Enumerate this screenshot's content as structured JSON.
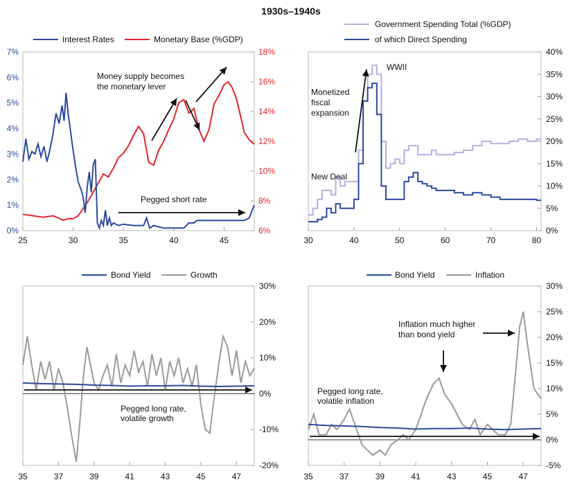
{
  "title": "1930s–1940s",
  "colors": {
    "blue": "#2b4a9c",
    "red": "#e0262b",
    "lightpurple": "#b6ade0",
    "gray": "#9a9a9a",
    "black": "#111111"
  },
  "chart_data": [
    {
      "type": "line",
      "legend": [
        "Interest Rates",
        "Monetary Base (%GDP)"
      ],
      "x_ticks": [
        "25",
        "30",
        "35",
        "40",
        "45"
      ],
      "xlim": [
        1925,
        1948
      ],
      "left_axis": {
        "ticks": [
          "0%",
          "1%",
          "2%",
          "3%",
          "4%",
          "5%",
          "6%",
          "7%"
        ],
        "ylim": [
          0,
          7
        ]
      },
      "right_axis": {
        "ticks": [
          "6%",
          "8%",
          "10%",
          "12%",
          "14%",
          "16%",
          "18%"
        ],
        "ylim": [
          6,
          18
        ]
      },
      "annotations": [
        "Money supply becomes",
        "the monetary lever",
        "Pegged short rate"
      ],
      "series": [
        {
          "name": "Interest Rates",
          "axis": "left",
          "color": "#2b4a9c",
          "x": [
            1925,
            1925.3,
            1925.6,
            1925.9,
            1926.2,
            1926.5,
            1926.8,
            1927.1,
            1927.4,
            1927.7,
            1928,
            1928.3,
            1928.6,
            1928.9,
            1929.1,
            1929.3,
            1929.5,
            1929.7,
            1929.9,
            1930.2,
            1930.5,
            1930.8,
            1931.0,
            1931.2,
            1931.4,
            1931.6,
            1931.8,
            1932.0,
            1932.2,
            1932.4,
            1932.6,
            1932.8,
            1933.0,
            1933.2,
            1933.4,
            1933.6,
            1933.8,
            1934.0,
            1934.5,
            1935,
            1936,
            1937,
            1937.3,
            1937.6,
            1938,
            1939,
            1940,
            1941,
            1941.5,
            1942,
            1942.3,
            1942.6,
            1943,
            1944,
            1945,
            1946,
            1947,
            1947.5,
            1947.8,
            1948
          ],
          "y": [
            2.7,
            3.6,
            2.8,
            3.1,
            3.0,
            3.4,
            2.9,
            3.3,
            2.7,
            3.2,
            3.8,
            4.6,
            4.2,
            4.9,
            4.3,
            5.4,
            4.6,
            4.0,
            3.4,
            2.6,
            1.9,
            1.6,
            1.3,
            0.7,
            1.7,
            2.3,
            1.5,
            2.6,
            2.8,
            0.3,
            0.1,
            0.4,
            0.2,
            0.8,
            0.2,
            0.5,
            0.2,
            0.3,
            0.2,
            0.25,
            0.2,
            0.2,
            0.5,
            0.1,
            0.2,
            0.1,
            0.1,
            0.1,
            0.3,
            0.3,
            0.4,
            0.4,
            0.4,
            0.4,
            0.4,
            0.4,
            0.4,
            0.5,
            0.8,
            1.0
          ]
        },
        {
          "name": "Monetary Base (%GDP)",
          "axis": "right",
          "color": "#e0262b",
          "x": [
            1925,
            1926,
            1927,
            1928,
            1929,
            1929.5,
            1930,
            1930.5,
            1931,
            1931.5,
            1932,
            1932.5,
            1933,
            1933.5,
            1934,
            1934.5,
            1935,
            1935.5,
            1936,
            1936.5,
            1937,
            1937.5,
            1938,
            1938.5,
            1939,
            1939.5,
            1940,
            1940.5,
            1941,
            1941.5,
            1942,
            1942.5,
            1943,
            1943.5,
            1944,
            1944.5,
            1945,
            1945.4,
            1945.8,
            1946.2,
            1946.6,
            1947,
            1947.5,
            1948
          ],
          "y": [
            7.1,
            7.0,
            6.9,
            7.0,
            6.7,
            6.8,
            6.8,
            7.0,
            7.5,
            8.0,
            8.6,
            9.2,
            9.8,
            9.6,
            10.2,
            10.9,
            11.2,
            11.7,
            12.4,
            13.0,
            12.5,
            10.6,
            10.4,
            11.4,
            12.0,
            12.8,
            13.5,
            14.6,
            14.8,
            13.9,
            14.2,
            12.8,
            12.0,
            12.8,
            14.5,
            15.1,
            15.8,
            16.0,
            15.6,
            14.9,
            13.8,
            12.6,
            12.1,
            11.8
          ]
        }
      ]
    },
    {
      "type": "line",
      "legend": [
        "Government Spending Total (%GDP)",
        "of which Direct Spending"
      ],
      "x_ticks": [
        "30",
        "40",
        "50",
        "60",
        "70",
        "80"
      ],
      "xlim": [
        1930,
        1981
      ],
      "right_axis": {
        "ticks": [
          "0%",
          "5%",
          "10%",
          "15%",
          "20%",
          "25%",
          "30%",
          "35%",
          "40%"
        ],
        "ylim": [
          0,
          40
        ]
      },
      "annotations": [
        "WWII",
        "Monetized",
        "fiscal",
        "expansion",
        "New Deal"
      ],
      "series": [
        {
          "name": "Government Spending Total (%GDP)",
          "color": "#b6ade0",
          "x": [
            1930,
            1931,
            1932,
            1933,
            1934,
            1935,
            1936,
            1937,
            1938,
            1939,
            1940,
            1941,
            1942,
            1943,
            1944,
            1945,
            1946,
            1947,
            1948,
            1949,
            1950,
            1951,
            1952,
            1953,
            1954,
            1955,
            1956,
            1957,
            1958,
            1959,
            1960,
            1962,
            1964,
            1966,
            1968,
            1970,
            1972,
            1974,
            1976,
            1978,
            1980,
            1981
          ],
          "y": [
            3.5,
            5,
            7,
            9,
            9,
            8,
            12,
            10,
            11,
            11,
            11,
            18,
            29,
            35,
            37,
            35,
            20,
            14,
            15,
            16,
            15,
            18,
            19,
            19,
            17,
            17,
            17,
            18,
            17,
            17,
            17,
            17.5,
            18,
            19,
            20,
            19.5,
            19.5,
            20,
            20.5,
            20,
            20.5,
            20.5
          ]
        },
        {
          "name": "of which Direct Spending",
          "color": "#2b4a9c",
          "x": [
            1930,
            1931,
            1932,
            1933,
            1934,
            1935,
            1936,
            1937,
            1938,
            1939,
            1940,
            1941,
            1942,
            1943,
            1944,
            1945,
            1946,
            1947,
            1948,
            1949,
            1950,
            1951,
            1952,
            1953,
            1954,
            1955,
            1956,
            1957,
            1958,
            1959,
            1960,
            1962,
            1964,
            1966,
            1968,
            1970,
            1972,
            1974,
            1976,
            1978,
            1980,
            1981
          ],
          "y": [
            2,
            2,
            2.5,
            3,
            5,
            4,
            6,
            5,
            5,
            5,
            7,
            15,
            29,
            32,
            33,
            26,
            10,
            7,
            7,
            7,
            7,
            11,
            12,
            13,
            11,
            10.5,
            10,
            9.5,
            9,
            9,
            9,
            8.5,
            8,
            8.5,
            8,
            7.5,
            7,
            7,
            7,
            7,
            6.8,
            6.8
          ]
        }
      ]
    },
    {
      "type": "line",
      "legend": [
        "Bond Yield",
        "Growth"
      ],
      "x_ticks": [
        "35",
        "37",
        "39",
        "41",
        "43",
        "45",
        "47"
      ],
      "xlim": [
        1935,
        1948
      ],
      "right_axis": {
        "ticks": [
          "-20%",
          "-10%",
          "0%",
          "10%",
          "20%",
          "30%"
        ],
        "ylim": [
          -20,
          30
        ]
      },
      "annotations": [
        "Pegged long rate,",
        "volatile growth"
      ],
      "series": [
        {
          "name": "Bond Yield",
          "color": "#2b4a9c",
          "x": [
            1935,
            1936,
            1937,
            1938,
            1939,
            1940,
            1941,
            1942,
            1943,
            1944,
            1945,
            1946,
            1947,
            1948
          ],
          "y": [
            3.0,
            2.8,
            2.7,
            2.6,
            2.4,
            2.3,
            2.1,
            2.2,
            2.2,
            2.3,
            2.1,
            2.0,
            2.1,
            2.2
          ]
        },
        {
          "name": "Growth",
          "color": "#9a9a9a",
          "x": [
            1935,
            1935.25,
            1935.5,
            1935.75,
            1936,
            1936.25,
            1936.5,
            1936.75,
            1937,
            1937.25,
            1937.5,
            1937.75,
            1938,
            1938.2,
            1938.4,
            1938.6,
            1938.8,
            1939,
            1939.25,
            1939.5,
            1939.75,
            1940,
            1940.25,
            1940.5,
            1940.75,
            1941,
            1941.25,
            1941.5,
            1941.75,
            1942,
            1942.25,
            1942.5,
            1942.75,
            1943,
            1943.25,
            1943.5,
            1943.75,
            1944,
            1944.25,
            1944.5,
            1944.75,
            1945,
            1945.25,
            1945.5,
            1945.75,
            1946,
            1946.25,
            1946.5,
            1946.75,
            1947,
            1947.25,
            1947.5,
            1947.75,
            1948
          ],
          "y": [
            8,
            16,
            8,
            1,
            9,
            4,
            9,
            1,
            7,
            3,
            -4,
            -12,
            -19,
            -8,
            5,
            13,
            8,
            3,
            1,
            5,
            8,
            2,
            11,
            3,
            8,
            5,
            12,
            6,
            9,
            2,
            11,
            5,
            10,
            1,
            9,
            5,
            10,
            3,
            7,
            2,
            8,
            -3,
            -10,
            -11,
            -1,
            8,
            16,
            13,
            5,
            12,
            3,
            9,
            5,
            7
          ]
        }
      ]
    },
    {
      "type": "line",
      "legend": [
        "Bond Yield",
        "Inflation"
      ],
      "x_ticks": [
        "35",
        "37",
        "39",
        "41",
        "43",
        "45",
        "47"
      ],
      "xlim": [
        1935,
        1948
      ],
      "right_axis": {
        "ticks": [
          "-5%",
          "0%",
          "5%",
          "10%",
          "15%",
          "20%",
          "25%",
          "30%"
        ],
        "ylim": [
          -5,
          30
        ]
      },
      "annotations": [
        "Inflation much higher",
        "than bond yield",
        "Pegged long rate,",
        "volatile inflation"
      ],
      "series": [
        {
          "name": "Bond Yield",
          "color": "#2b4a9c",
          "x": [
            1935,
            1936,
            1937,
            1938,
            1939,
            1940,
            1941,
            1942,
            1943,
            1944,
            1945,
            1946,
            1947,
            1948
          ],
          "y": [
            3.0,
            2.8,
            2.7,
            2.6,
            2.4,
            2.3,
            2.1,
            2.2,
            2.2,
            2.3,
            2.1,
            2.0,
            2.1,
            2.2
          ]
        },
        {
          "name": "Inflation",
          "color": "#9a9a9a",
          "x": [
            1935,
            1935.3,
            1935.6,
            1936,
            1936.3,
            1936.6,
            1937,
            1937.3,
            1937.6,
            1938,
            1938.3,
            1938.6,
            1939,
            1939.3,
            1939.6,
            1940,
            1940.3,
            1940.6,
            1941,
            1941.3,
            1941.6,
            1942,
            1942.3,
            1942.6,
            1943,
            1943.3,
            1943.6,
            1944,
            1944.3,
            1944.6,
            1945,
            1945.3,
            1945.6,
            1946,
            1946.3,
            1946.6,
            1946.8,
            1947,
            1947.3,
            1947.6,
            1948
          ],
          "y": [
            2,
            5,
            1,
            1,
            3,
            2,
            4,
            6,
            3,
            -1,
            -2,
            -3,
            -2,
            -3,
            -1,
            0,
            1,
            0,
            2,
            5,
            8,
            11,
            12,
            9,
            7,
            5,
            3,
            2,
            4,
            1,
            3,
            2,
            1,
            1,
            3,
            14,
            22,
            25,
            17,
            10,
            8
          ]
        }
      ]
    }
  ]
}
